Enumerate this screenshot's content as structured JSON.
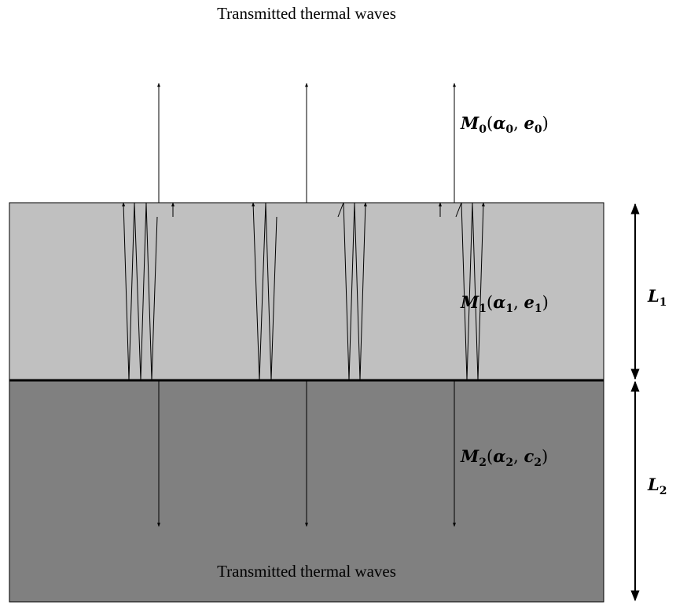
{
  "top_label": "Transmitted thermal waves",
  "bottom_label": "Transmitted thermal waves",
  "media": {
    "m0": {
      "symbol": "M",
      "index": "0",
      "params": [
        "α",
        "e"
      ]
    },
    "m1": {
      "symbol": "M",
      "index": "1",
      "params": [
        "α",
        "e"
      ]
    },
    "m2": {
      "symbol": "M",
      "index": "2",
      "params": [
        "α",
        "c"
      ]
    }
  },
  "dimensions": {
    "l1": {
      "symbol": "L",
      "index": "1"
    },
    "l2": {
      "symbol": "L",
      "index": "2"
    }
  },
  "colors": {
    "layer1_fill": "#c0c0c0",
    "layer2_fill": "#808080",
    "line": "#000000"
  }
}
